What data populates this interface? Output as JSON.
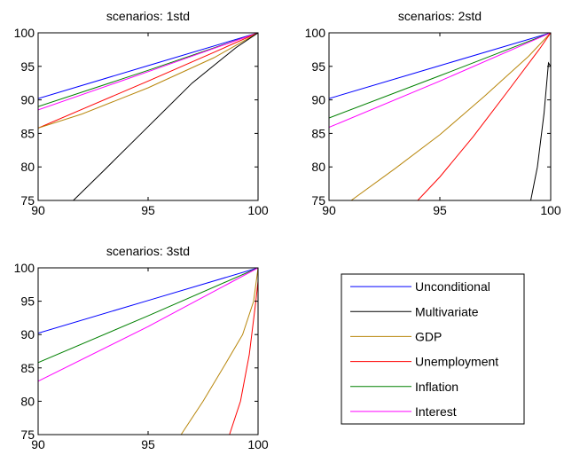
{
  "legend": {
    "items": [
      {
        "label": "Unconditional",
        "color": "#0000ff"
      },
      {
        "label": "Multivariate",
        "color": "#000000"
      },
      {
        "label": "GDP",
        "color": "#b8860b"
      },
      {
        "label": "Unemployment",
        "color": "#ff0000"
      },
      {
        "label": "Inflation",
        "color": "#008000"
      },
      {
        "label": "Interest",
        "color": "#ff00ff"
      }
    ]
  },
  "chart_data": [
    {
      "type": "line",
      "title": "scenarios: 1std",
      "xlim": [
        90,
        100
      ],
      "ylim": [
        75,
        100
      ],
      "xticks": [
        90,
        95,
        100
      ],
      "yticks": [
        75,
        80,
        85,
        90,
        95,
        100
      ],
      "series": [
        {
          "name": "Unconditional",
          "color": "#0000ff",
          "x": [
            90,
            95,
            100
          ],
          "y": [
            90.2,
            95.1,
            100
          ]
        },
        {
          "name": "Inflation",
          "color": "#008000",
          "x": [
            90,
            95,
            100
          ],
          "y": [
            89.0,
            94.4,
            100
          ]
        },
        {
          "name": "Interest",
          "color": "#ff00ff",
          "x": [
            90,
            95,
            100
          ],
          "y": [
            88.5,
            94.2,
            100
          ]
        },
        {
          "name": "Unemployment",
          "color": "#ff0000",
          "x": [
            90,
            92,
            95,
            98,
            100
          ],
          "y": [
            85.8,
            88.6,
            92.8,
            97.1,
            100
          ]
        },
        {
          "name": "GDP",
          "color": "#b8860b",
          "x": [
            90,
            92,
            95,
            98,
            100
          ],
          "y": [
            85.8,
            87.9,
            91.8,
            96.3,
            100
          ]
        },
        {
          "name": "Multivariate",
          "color": "#000000",
          "x": [
            91.6,
            93,
            95,
            97,
            99,
            100
          ],
          "y": [
            75,
            79.5,
            86,
            92.5,
            97.8,
            100
          ]
        }
      ]
    },
    {
      "type": "line",
      "title": "scenarios: 2std",
      "xlim": [
        90,
        100
      ],
      "ylim": [
        75,
        100
      ],
      "xticks": [
        90,
        95,
        100
      ],
      "yticks": [
        75,
        80,
        85,
        90,
        95,
        100
      ],
      "series": [
        {
          "name": "Unconditional",
          "color": "#0000ff",
          "x": [
            90,
            95,
            100
          ],
          "y": [
            90.2,
            95.1,
            100
          ]
        },
        {
          "name": "Inflation",
          "color": "#008000",
          "x": [
            90,
            95,
            100
          ],
          "y": [
            87.3,
            93.6,
            100
          ]
        },
        {
          "name": "Interest",
          "color": "#ff00ff",
          "x": [
            90,
            95,
            100
          ],
          "y": [
            85.9,
            92.8,
            100
          ]
        },
        {
          "name": "GDP",
          "color": "#b8860b",
          "x": [
            91,
            93,
            95,
            97,
            99,
            100
          ],
          "y": [
            75,
            79.8,
            84.8,
            90.5,
            96.5,
            100
          ]
        },
        {
          "name": "Unemployment",
          "color": "#ff0000",
          "x": [
            94,
            95,
            96.5,
            98,
            99.5,
            100
          ],
          "y": [
            75,
            78.5,
            84.5,
            91,
            97.6,
            100
          ]
        },
        {
          "name": "Multivariate",
          "color": "#000000",
          "x": [
            99.1,
            99.4,
            99.7,
            99.9,
            100
          ],
          "y": [
            75,
            80,
            88,
            95.5,
            95
          ]
        }
      ]
    },
    {
      "type": "line",
      "title": "scenarios: 3std",
      "xlim": [
        90,
        100
      ],
      "ylim": [
        75,
        100
      ],
      "xticks": [
        90,
        95,
        100
      ],
      "yticks": [
        75,
        80,
        85,
        90,
        95,
        100
      ],
      "series": [
        {
          "name": "Unconditional",
          "color": "#0000ff",
          "x": [
            90,
            95,
            100
          ],
          "y": [
            90.2,
            95.1,
            100
          ]
        },
        {
          "name": "Inflation",
          "color": "#008000",
          "x": [
            90,
            95,
            100
          ],
          "y": [
            85.8,
            92.8,
            100
          ]
        },
        {
          "name": "Interest",
          "color": "#ff00ff",
          "x": [
            90,
            95,
            100
          ],
          "y": [
            83.0,
            91.2,
            100
          ]
        },
        {
          "name": "GDP",
          "color": "#b8860b",
          "x": [
            96.5,
            97.5,
            98.5,
            99.3,
            99.8,
            100
          ],
          "y": [
            75,
            80,
            85.5,
            90,
            95,
            100
          ]
        },
        {
          "name": "Unemployment",
          "color": "#ff0000",
          "x": [
            98.7,
            99.2,
            99.6,
            99.9,
            100
          ],
          "y": [
            75,
            80,
            87,
            95,
            98
          ]
        }
      ]
    }
  ]
}
